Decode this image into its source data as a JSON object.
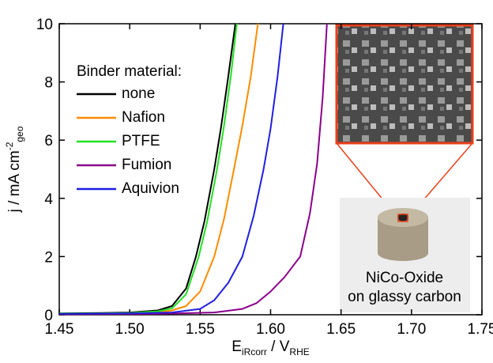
{
  "chart_data": {
    "type": "line",
    "x_label": [
      "E",
      "iRcorr",
      " / V",
      "RHE"
    ],
    "y_label": [
      "j / mA cm",
      "-2",
      "geo"
    ],
    "legend_title": "Binder material:",
    "annotation": [
      "NiCo-Oxide",
      "on glassy carbon"
    ],
    "xlim": [
      1.45,
      1.75
    ],
    "xticks": [
      1.45,
      {
        "value": 1.5,
        "label": "1.50"
      },
      1.55,
      {
        "value": 1.6,
        "label": "1.60"
      },
      1.65,
      {
        "value": 1.7,
        "label": "1.70"
      },
      1.75
    ],
    "ylim": [
      0,
      10
    ],
    "yticks": [
      0,
      2,
      4,
      6,
      8,
      10
    ],
    "legend": "upper left",
    "series": [
      {
        "name": "none",
        "color": "#000000",
        "x": [
          1.45,
          1.48,
          1.5,
          1.52,
          1.53,
          1.54,
          1.547,
          1.553,
          1.56,
          1.565,
          1.57,
          1.575
        ],
        "values": [
          0.05,
          0.06,
          0.08,
          0.15,
          0.3,
          0.9,
          2,
          3.2,
          5,
          6.5,
          8.2,
          10
        ]
      },
      {
        "name": "Nafion",
        "color": "#ff8c00",
        "x": [
          1.45,
          1.5,
          1.52,
          1.53,
          1.54,
          1.55,
          1.56,
          1.567,
          1.574,
          1.58,
          1.586,
          1.591
        ],
        "values": [
          0.03,
          0.05,
          0.08,
          0.15,
          0.3,
          0.8,
          2,
          3.3,
          5,
          6.5,
          8.2,
          10
        ]
      },
      {
        "name": "PTFE",
        "color": "#22e022",
        "x": [
          1.45,
          1.48,
          1.5,
          1.52,
          1.53,
          1.54,
          1.549,
          1.555,
          1.562,
          1.567,
          1.572,
          1.576
        ],
        "values": [
          0.04,
          0.05,
          0.06,
          0.12,
          0.22,
          0.7,
          2,
          3.2,
          5,
          6.5,
          8.3,
          10
        ]
      },
      {
        "name": "Fumion",
        "color": "#8b008b",
        "x": [
          1.45,
          1.52,
          1.56,
          1.58,
          1.59,
          1.6,
          1.61,
          1.621,
          1.628,
          1.633,
          1.637,
          1.64
        ],
        "values": [
          0.02,
          0.03,
          0.08,
          0.2,
          0.4,
          0.8,
          1.3,
          2,
          3.5,
          5.2,
          7.5,
          10
        ]
      },
      {
        "name": "Aquivion",
        "color": "#1f1fe0",
        "x": [
          1.45,
          1.5,
          1.53,
          1.55,
          1.56,
          1.57,
          1.58,
          1.588,
          1.595,
          1.6,
          1.605,
          1.609
        ],
        "values": [
          0.03,
          0.05,
          0.08,
          0.2,
          0.5,
          1.1,
          2,
          3.4,
          5,
          6.4,
          8.2,
          10
        ]
      }
    ]
  }
}
